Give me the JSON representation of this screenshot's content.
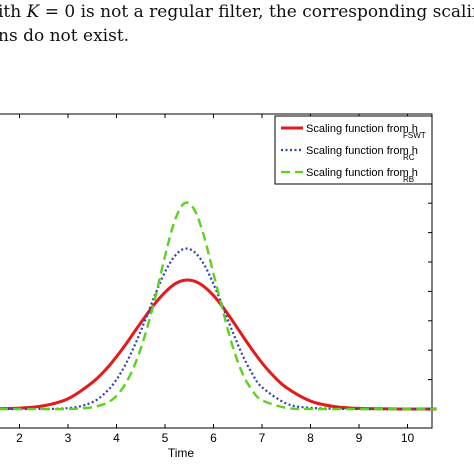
{
  "text": {
    "line1_prefix": "ith ",
    "line1_math_var": "K",
    "line1_math_rest": " = 0",
    "line1_suffix": " is not a regular filter, the corresponding scaling",
    "line2": "ns do not exist."
  },
  "chart_data": {
    "type": "line",
    "title": "",
    "xlabel": "Time",
    "ylabel": "",
    "xlim": [
      1.0,
      10.6
    ],
    "ylim": [
      0.0,
      1.0
    ],
    "x_ticks": [
      2,
      3,
      4,
      5,
      6,
      7,
      8,
      9,
      10
    ],
    "grid": false,
    "legend_position": "top-right",
    "series": [
      {
        "name": "Scaling function from h",
        "subscript": "FSWT",
        "style": "solid",
        "color": "#e41a1c",
        "x": [
          1.0,
          1.5,
          2.0,
          2.5,
          3.0,
          3.5,
          3.8,
          4.0,
          4.2,
          4.4,
          4.6,
          4.8,
          5.0,
          5.2,
          5.4,
          5.6,
          5.8,
          6.0,
          6.2,
          6.4,
          6.6,
          6.8,
          7.0,
          7.2,
          7.5,
          8.0,
          8.5,
          9.0,
          10.0,
          10.6
        ],
        "y": [
          0.0,
          0.001,
          0.003,
          0.011,
          0.035,
          0.09,
          0.138,
          0.178,
          0.222,
          0.27,
          0.316,
          0.36,
          0.397,
          0.425,
          0.438,
          0.435,
          0.417,
          0.386,
          0.345,
          0.298,
          0.249,
          0.201,
          0.157,
          0.119,
          0.073,
          0.027,
          0.008,
          0.002,
          0.0,
          0.0
        ]
      },
      {
        "name": "Scaling function from h",
        "subscript": "RC",
        "style": "dotted",
        "color": "#2b3fb8",
        "x": [
          1.0,
          2.0,
          3.0,
          3.5,
          3.8,
          4.0,
          4.2,
          4.4,
          4.6,
          4.8,
          5.0,
          5.2,
          5.4,
          5.6,
          5.8,
          6.0,
          6.2,
          6.4,
          6.6,
          6.8,
          7.0,
          7.5,
          8.0,
          9.0,
          10.6
        ],
        "y": [
          0.0,
          0.0,
          0.003,
          0.023,
          0.06,
          0.1,
          0.156,
          0.226,
          0.306,
          0.391,
          0.466,
          0.52,
          0.545,
          0.535,
          0.493,
          0.425,
          0.344,
          0.26,
          0.183,
          0.12,
          0.074,
          0.019,
          0.004,
          0.0,
          0.0
        ]
      },
      {
        "name": "Scaling function from h",
        "subscript": "RB",
        "style": "dashed",
        "color": "#5cd11e",
        "x": [
          1.0,
          2.0,
          3.0,
          3.5,
          3.8,
          4.0,
          4.2,
          4.4,
          4.6,
          4.8,
          5.0,
          5.2,
          5.4,
          5.6,
          5.8,
          6.0,
          6.2,
          6.4,
          6.6,
          6.8,
          7.0,
          7.5,
          8.0,
          9.0,
          10.6
        ],
        "y": [
          0.0,
          0.0,
          0.0,
          0.006,
          0.021,
          0.045,
          0.09,
          0.16,
          0.258,
          0.38,
          0.52,
          0.64,
          0.7,
          0.68,
          0.59,
          0.46,
          0.33,
          0.21,
          0.12,
          0.063,
          0.03,
          0.004,
          0.0,
          0.0,
          0.0
        ]
      }
    ]
  }
}
